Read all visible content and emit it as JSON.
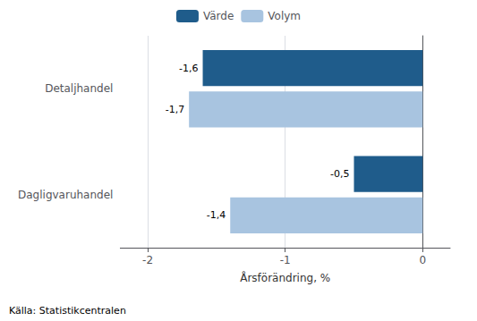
{
  "chart_data": {
    "type": "bar",
    "orientation": "horizontal",
    "categories": [
      "Dagligvaruhandel",
      "Detaljhandel"
    ],
    "series": [
      {
        "name": "Värde",
        "color": "#1F5C8B",
        "values": [
          -0.5,
          -1.6
        ],
        "value_labels": [
          "-0,5",
          "-1,6"
        ]
      },
      {
        "name": "Volym",
        "color": "#A8C4E0",
        "values": [
          -1.4,
          -1.7
        ],
        "value_labels": [
          "-1,4",
          "-1,7"
        ]
      }
    ],
    "xlabel": "Årsförändring, %",
    "xlim": [
      -2.2,
      0.2
    ],
    "xticks": [
      -2,
      -1,
      0
    ],
    "grid": true,
    "legend": "top",
    "data_labels": true,
    "annotations": [
      "Källa: Statistikcentralen"
    ]
  }
}
